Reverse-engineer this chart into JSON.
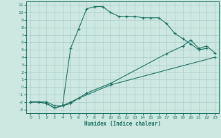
{
  "xlabel": "Humidex (Indice chaleur)",
  "background_color": "#cce8e0",
  "grid_color": "#aacccc",
  "line_color": "#1a6e60",
  "xlim": [
    -0.5,
    23.5
  ],
  "ylim": [
    -3.5,
    11.5
  ],
  "xticks": [
    0,
    1,
    2,
    3,
    4,
    5,
    6,
    7,
    8,
    9,
    10,
    11,
    12,
    13,
    14,
    15,
    16,
    17,
    18,
    19,
    20,
    21,
    22,
    23
  ],
  "yticks": [
    -3,
    -2,
    -1,
    0,
    1,
    2,
    3,
    4,
    5,
    6,
    7,
    8,
    9,
    10,
    11
  ],
  "line1_x": [
    0,
    1,
    2,
    3,
    4,
    5,
    6,
    7,
    8,
    9,
    10,
    11,
    12,
    13,
    14,
    15,
    16,
    17,
    18,
    19,
    20,
    21,
    22,
    23
  ],
  "line1_y": [
    -2,
    -2,
    -2,
    -2.5,
    -2.5,
    5.2,
    7.8,
    10.5,
    10.8,
    10.8,
    10.0,
    9.5,
    9.5,
    9.5,
    9.3,
    9.3,
    9.3,
    8.5,
    7.2,
    6.5,
    5.8,
    5.0,
    5.2,
    null
  ],
  "line2_x": [
    0,
    1,
    2,
    3,
    4,
    5,
    6,
    7,
    10,
    17,
    19,
    20,
    21,
    22,
    23
  ],
  "line2_y": [
    -2,
    -2,
    -2.2,
    -2.8,
    -2.5,
    -2.2,
    -1.5,
    -0.8,
    0.5,
    4.5,
    5.5,
    6.3,
    5.2,
    5.5,
    4.6
  ],
  "line3_x": [
    0,
    1,
    2,
    3,
    4,
    5,
    6,
    10,
    23
  ],
  "line3_y": [
    -2,
    -2,
    -2.2,
    -2.8,
    -2.5,
    -2.0,
    -1.5,
    0.3,
    4.0
  ]
}
